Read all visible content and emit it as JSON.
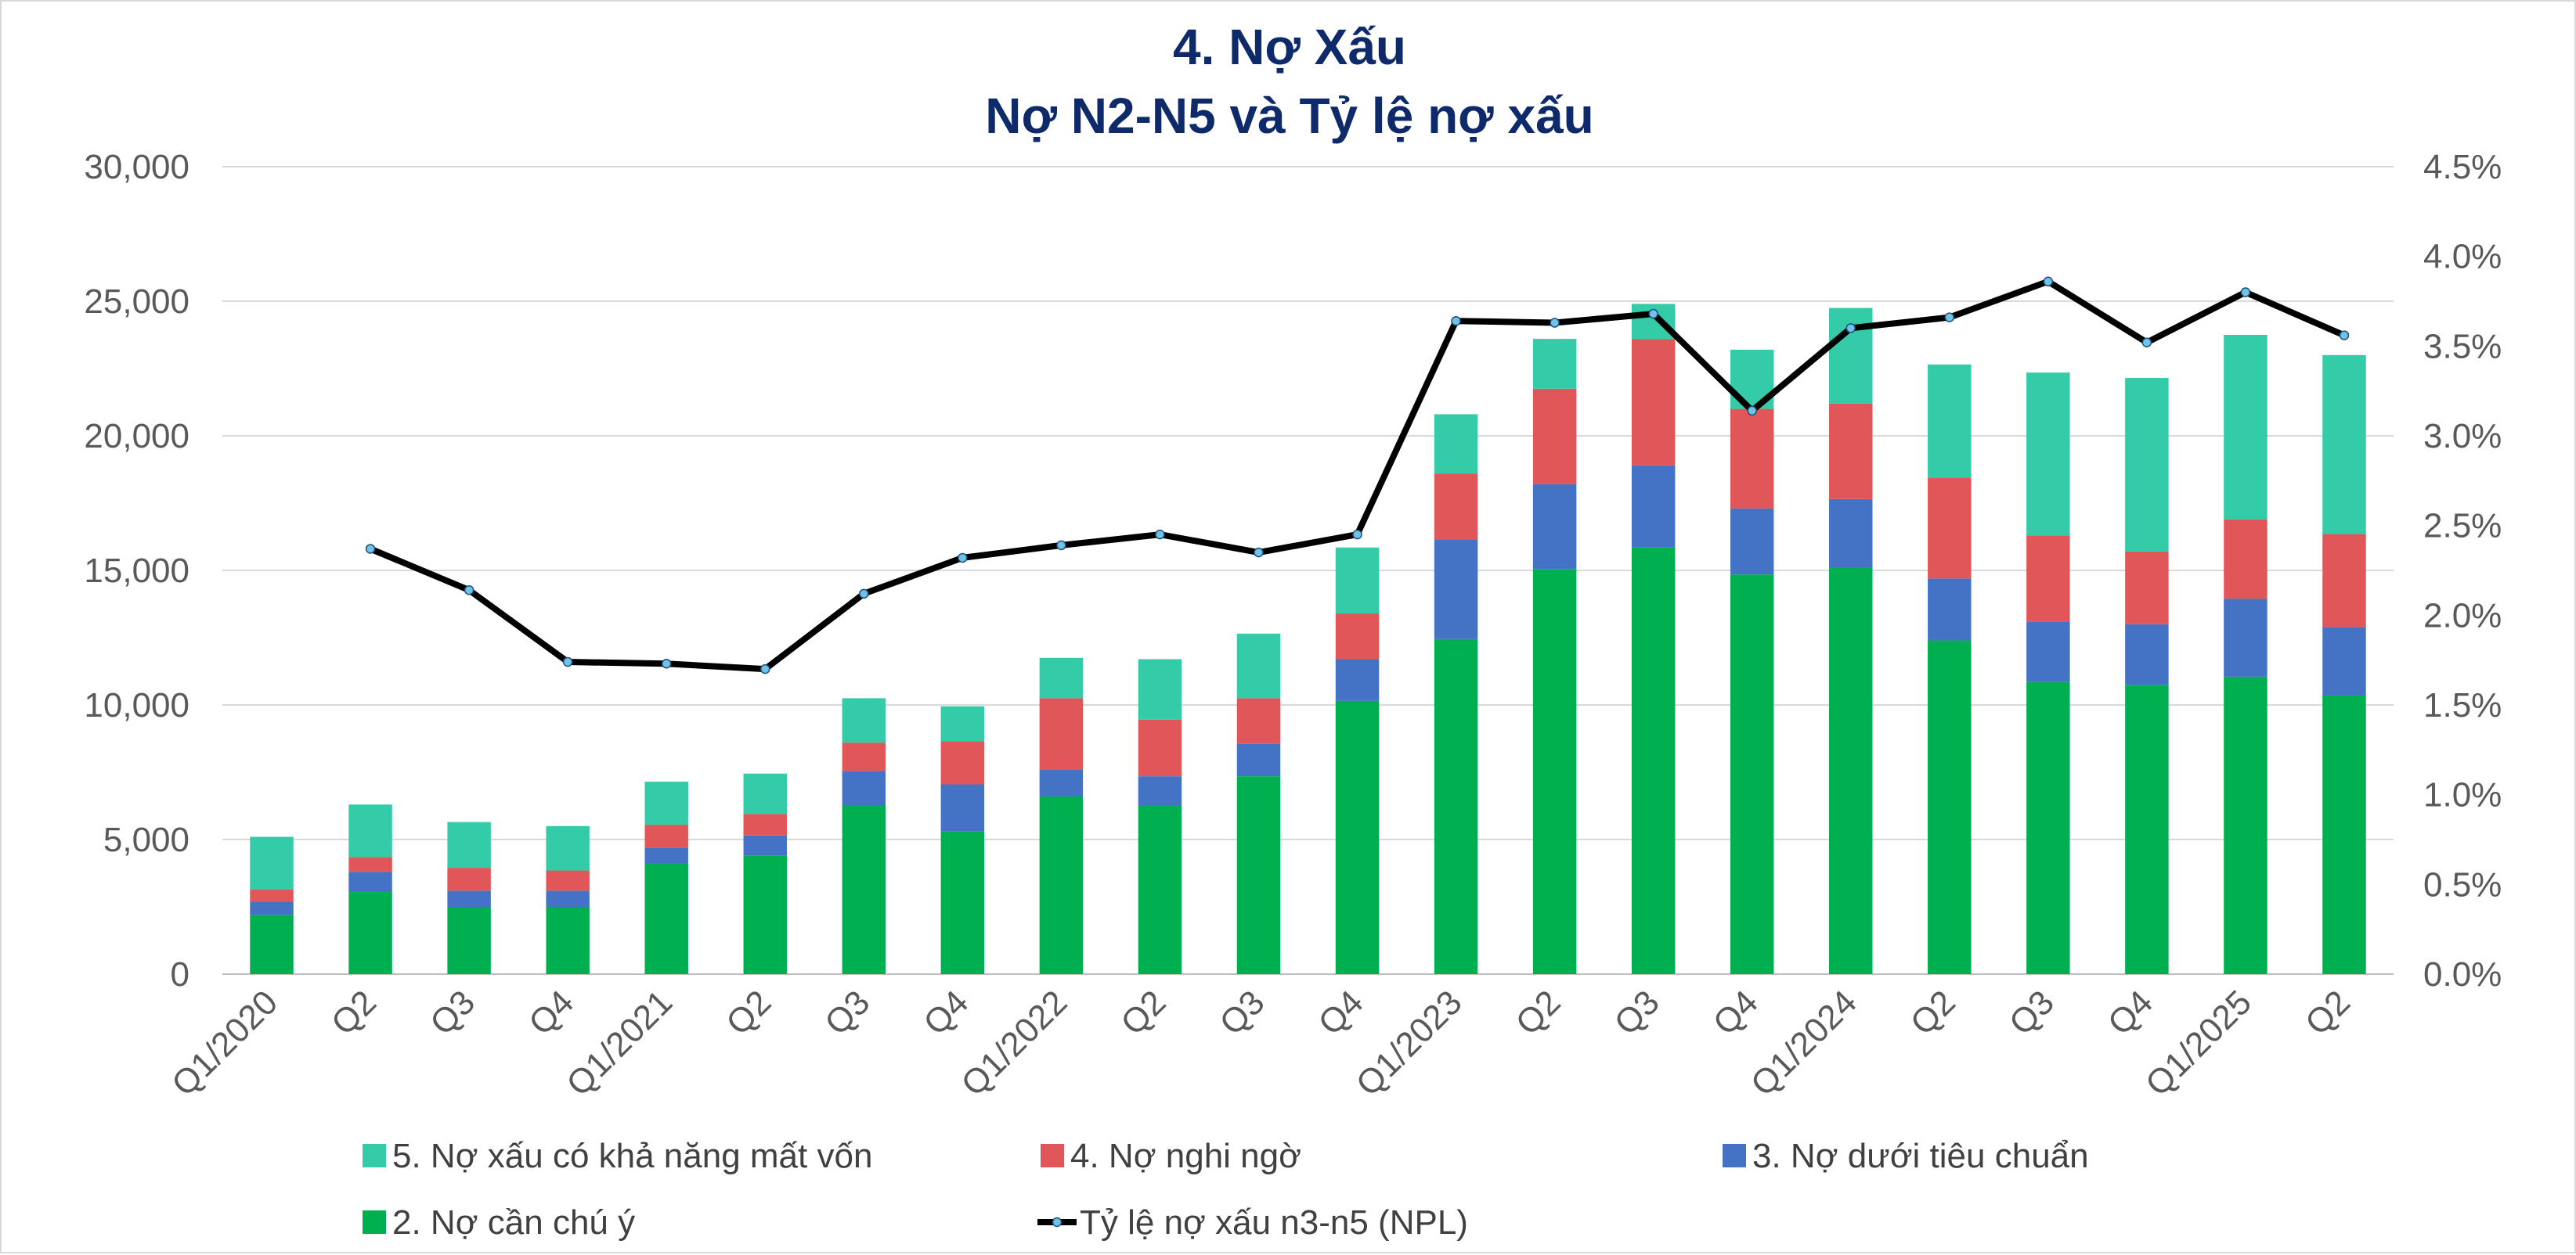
{
  "chart_data": {
    "type": "bar",
    "stacked": true,
    "title": "4. Nợ Xấu",
    "subtitle": "Nợ N2-N5 và Tỷ lệ nợ xấu",
    "categories": [
      "Q1/2020",
      "Q2",
      "Q3",
      "Q4",
      "Q1/2021",
      "Q2",
      "Q3",
      "Q4",
      "Q1/2022",
      "Q2",
      "Q3",
      "Q4",
      "Q1/2023",
      "Q2",
      "Q3",
      "Q4",
      "Q1/2024",
      "Q2",
      "Q3",
      "Q4",
      "Q1/2025",
      "Q2"
    ],
    "y_ticks": [
      "0",
      "5,000",
      "10,000",
      "15,000",
      "20,000",
      "25,000",
      "30,000"
    ],
    "y2_ticks": [
      "0.0%",
      "0.5%",
      "1.0%",
      "1.5%",
      "2.0%",
      "2.5%",
      "3.0%",
      "3.5%",
      "4.0%",
      "4.5%"
    ],
    "ylim": [
      0,
      30000
    ],
    "y2lim": [
      0,
      4.5
    ],
    "grid": true,
    "legend_position": "bottom",
    "series": [
      {
        "name": "2. Nợ cần chú ý",
        "color": "#00b050",
        "values": [
          2200,
          3050,
          2500,
          2500,
          4100,
          4400,
          6250,
          5300,
          6600,
          6250,
          7350,
          10150,
          12450,
          15050,
          15850,
          14850,
          15100,
          12400,
          10850,
          10750,
          11050,
          10350
        ]
      },
      {
        "name": "3. Nợ dưới tiêu chuẩn",
        "color": "#4472c4",
        "values": [
          500,
          750,
          600,
          600,
          600,
          750,
          1300,
          1750,
          1000,
          1100,
          1200,
          1550,
          3700,
          3150,
          3050,
          2450,
          2550,
          2300,
          2250,
          2250,
          2900,
          2550
        ]
      },
      {
        "name": "4. Nợ nghi ngờ",
        "color": "#e15759",
        "values": [
          450,
          550,
          850,
          750,
          850,
          800,
          1050,
          1600,
          2650,
          2100,
          1700,
          1700,
          2450,
          3550,
          4700,
          3700,
          3550,
          3750,
          3200,
          2700,
          2950,
          3450
        ]
      },
      {
        "name": "5. Nợ xấu có khả năng mất vốn",
        "color": "#33cba8",
        "values": [
          1950,
          1950,
          1700,
          1650,
          1600,
          1500,
          1650,
          1300,
          1500,
          2250,
          2400,
          2450,
          2200,
          1850,
          1300,
          2200,
          3550,
          4200,
          6050,
          6450,
          6850,
          6650
        ]
      }
    ],
    "line_series": {
      "name": "Tỷ lệ nợ xấu n3-n5 (NPL)",
      "color": "#000000",
      "marker_color": "#6fc3e8",
      "axis": "right",
      "values": [
        null,
        2.37,
        2.14,
        1.74,
        1.73,
        1.7,
        2.12,
        2.32,
        2.39,
        2.45,
        2.35,
        2.45,
        3.64,
        3.63,
        3.68,
        3.14,
        3.6,
        3.66,
        3.86,
        3.52,
        3.8,
        3.56
      ]
    }
  }
}
